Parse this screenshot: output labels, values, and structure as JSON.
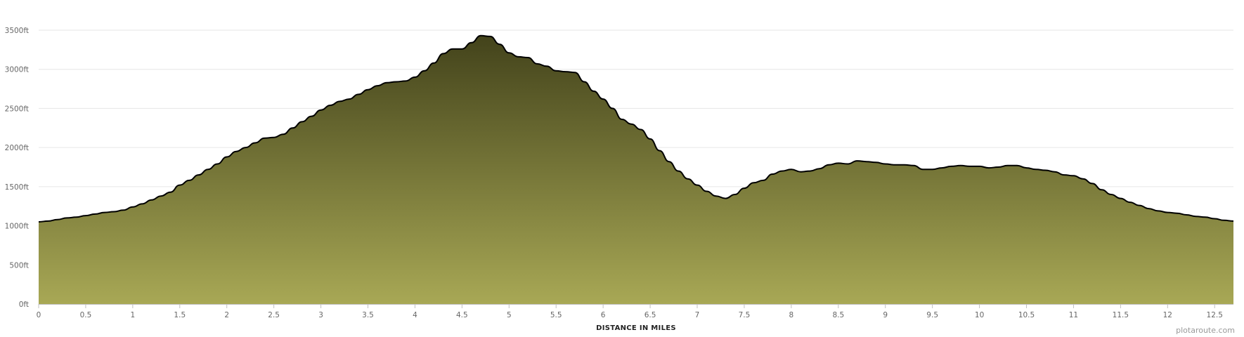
{
  "chart_data": {
    "type": "area",
    "title": "",
    "xlabel": "DISTANCE IN MILES",
    "ylabel": "",
    "xlim": [
      0,
      12.7
    ],
    "ylim": [
      0,
      3500
    ],
    "y_unit": "ft",
    "x_ticks": [
      0,
      0.5,
      1,
      1.5,
      2,
      2.5,
      3,
      3.5,
      4,
      4.5,
      5,
      5.5,
      6,
      6.5,
      7,
      7.5,
      8,
      8.5,
      9,
      9.5,
      10,
      10.5,
      11,
      11.5,
      12,
      12.5
    ],
    "y_ticks": [
      0,
      500,
      1000,
      1500,
      2000,
      2500,
      3000,
      3500
    ],
    "grid": "horizontal",
    "legend": "none",
    "fill_gradient": [
      "#43431b",
      "#a8a855"
    ],
    "line_color": "#000000",
    "series": [
      {
        "x": [
          0,
          0.1,
          0.2,
          0.3,
          0.4,
          0.5,
          0.6,
          0.7,
          0.8,
          0.9,
          1.0,
          1.1,
          1.2,
          1.3,
          1.4,
          1.5,
          1.6,
          1.7,
          1.8,
          1.9,
          2.0,
          2.1,
          2.2,
          2.3,
          2.4,
          2.5,
          2.6,
          2.7,
          2.8,
          2.9,
          3.0,
          3.1,
          3.2,
          3.3,
          3.4,
          3.5,
          3.6,
          3.7,
          3.8,
          3.9,
          4.0,
          4.1,
          4.2,
          4.3,
          4.4,
          4.5,
          4.6,
          4.7,
          4.8,
          4.9,
          5.0,
          5.1,
          5.2,
          5.3,
          5.4,
          5.5,
          5.6,
          5.7,
          5.8,
          5.9,
          6.0,
          6.1,
          6.2,
          6.3,
          6.4,
          6.5,
          6.6,
          6.7,
          6.8,
          6.9,
          7.0,
          7.1,
          7.2,
          7.3,
          7.4,
          7.5,
          7.6,
          7.7,
          7.8,
          7.9,
          8.0,
          8.1,
          8.2,
          8.3,
          8.4,
          8.5,
          8.6,
          8.7,
          8.8,
          8.9,
          9.0,
          9.1,
          9.2,
          9.3,
          9.4,
          9.5,
          9.6,
          9.7,
          9.8,
          9.9,
          10.0,
          10.1,
          10.2,
          10.3,
          10.4,
          10.5,
          10.6,
          10.7,
          10.8,
          10.9,
          11.0,
          11.1,
          11.2,
          11.3,
          11.4,
          11.5,
          11.6,
          11.7,
          11.8,
          11.9,
          12.0,
          12.1,
          12.2,
          12.3,
          12.4,
          12.5,
          12.6,
          12.7
        ],
        "values": [
          1050,
          1060,
          1080,
          1100,
          1110,
          1130,
          1150,
          1170,
          1180,
          1200,
          1240,
          1280,
          1330,
          1380,
          1430,
          1520,
          1580,
          1650,
          1720,
          1790,
          1880,
          1950,
          2000,
          2060,
          2120,
          2130,
          2170,
          2250,
          2330,
          2400,
          2480,
          2540,
          2590,
          2620,
          2680,
          2740,
          2790,
          2830,
          2840,
          2850,
          2900,
          2980,
          3080,
          3200,
          3260,
          3260,
          3340,
          3430,
          3420,
          3320,
          3210,
          3160,
          3150,
          3070,
          3040,
          2980,
          2970,
          2960,
          2840,
          2720,
          2620,
          2500,
          2360,
          2300,
          2230,
          2110,
          1960,
          1820,
          1700,
          1600,
          1520,
          1440,
          1380,
          1350,
          1400,
          1480,
          1550,
          1580,
          1660,
          1700,
          1720,
          1690,
          1700,
          1730,
          1780,
          1800,
          1790,
          1830,
          1820,
          1810,
          1790,
          1780,
          1780,
          1770,
          1720,
          1720,
          1740,
          1760,
          1770,
          1760,
          1760,
          1740,
          1750,
          1770,
          1770,
          1740,
          1720,
          1710,
          1690,
          1650,
          1640,
          1600,
          1540,
          1460,
          1400,
          1350,
          1300,
          1260,
          1220,
          1190,
          1170,
          1160,
          1140,
          1120,
          1110,
          1090,
          1070,
          1060
        ]
      }
    ]
  },
  "footer": {
    "credit": "plotaroute.com"
  }
}
